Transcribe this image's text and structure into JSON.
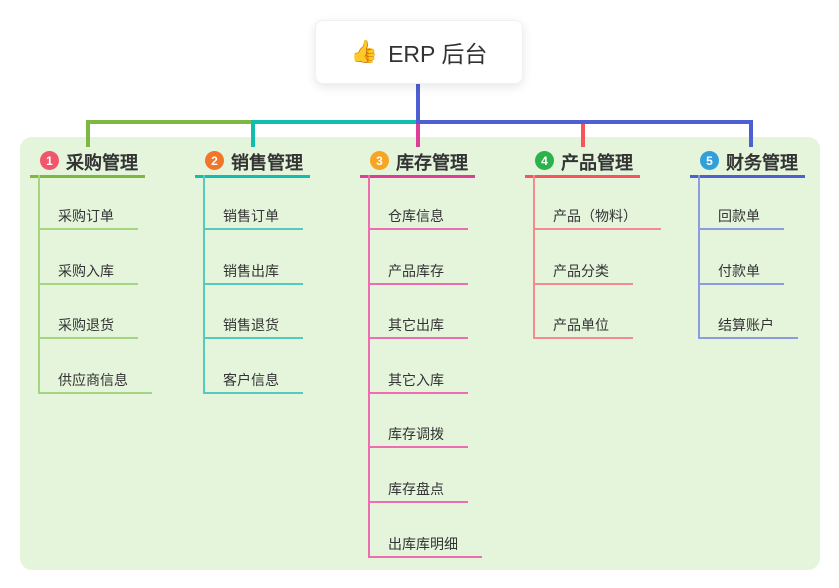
{
  "root": {
    "icon": "👍",
    "label": "ERP 后台"
  },
  "colors": {
    "canvas_bg": "#ffffff",
    "panel_bg": "#e4f5dc",
    "root_stem": "#4d5fd3",
    "text": "#333333"
  },
  "branches": [
    {
      "id": "purchase",
      "badge": "1",
      "label": "采购管理",
      "badge_color": "#f2566b",
      "line_color": "#7db942",
      "child_line_color": "#a5d57f",
      "children": [
        "采购订单",
        "采购入库",
        "采购退货",
        "供应商信息"
      ]
    },
    {
      "id": "sales",
      "badge": "2",
      "label": "销售管理",
      "badge_color": "#f0762a",
      "line_color": "#12bdad",
      "child_line_color": "#56cabc",
      "children": [
        "销售订单",
        "销售出库",
        "销售退货",
        "客户信息"
      ]
    },
    {
      "id": "inventory",
      "badge": "3",
      "label": "库存管理",
      "badge_color": "#f6a623",
      "line_color": "#e03d98",
      "child_line_color": "#ee6cb2",
      "children": [
        "仓库信息",
        "产品库存",
        "其它出库",
        "其它入库",
        "库存调拨",
        "库存盘点",
        "出库库明细"
      ]
    },
    {
      "id": "product",
      "badge": "4",
      "label": "产品管理",
      "badge_color": "#2cb24c",
      "line_color": "#f5565e",
      "child_line_color": "#f58b90",
      "children": [
        "产品（物料）",
        "产品分类",
        "产品单位"
      ]
    },
    {
      "id": "finance",
      "badge": "5",
      "label": "财务管理",
      "badge_color": "#329fd9",
      "line_color": "#4d5fd3",
      "child_line_color": "#8c9ce2",
      "children": [
        "回款单",
        "付款单",
        "结算账户"
      ]
    }
  ]
}
